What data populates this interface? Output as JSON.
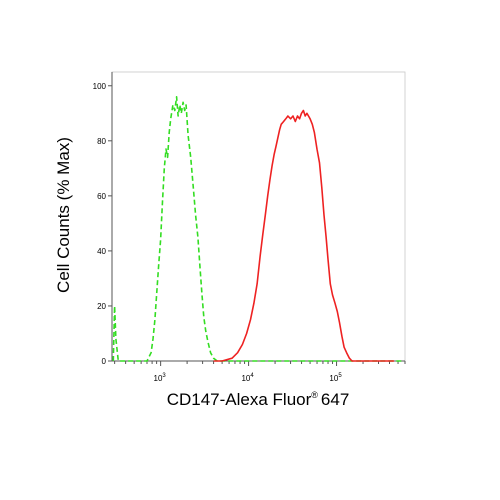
{
  "chart_data": {
    "type": "line",
    "xlabel": "CD147-Alexa Fluor",
    "xlabel_mark": "®",
    "xlabel_suffix": "647",
    "ylabel": "Cell Counts (% Max)",
    "x_scale": "log",
    "xlim": [
      280,
      600000
    ],
    "ylim": [
      0,
      105
    ],
    "x_ticks": [
      {
        "value": 1000,
        "base": "10",
        "exp": "3"
      },
      {
        "value": 10000,
        "base": "10",
        "exp": "4"
      },
      {
        "value": 100000,
        "base": "10",
        "exp": "5"
      }
    ],
    "y_ticks": [
      0,
      20,
      40,
      60,
      80,
      100
    ],
    "grid": false,
    "legend": "none",
    "series": [
      {
        "style": "dashed",
        "color": "#33dd22",
        "points": [
          [
            290,
            0
          ],
          [
            300,
            20
          ],
          [
            310,
            8
          ],
          [
            330,
            0
          ],
          [
            500,
            0
          ],
          [
            700,
            0
          ],
          [
            780,
            3
          ],
          [
            820,
            8
          ],
          [
            860,
            15
          ],
          [
            900,
            24
          ],
          [
            950,
            35
          ],
          [
            1000,
            44
          ],
          [
            1050,
            58
          ],
          [
            1100,
            70
          ],
          [
            1150,
            77
          ],
          [
            1200,
            74
          ],
          [
            1250,
            83
          ],
          [
            1300,
            88
          ],
          [
            1380,
            93
          ],
          [
            1450,
            91
          ],
          [
            1520,
            96
          ],
          [
            1580,
            89
          ],
          [
            1650,
            93
          ],
          [
            1720,
            90
          ],
          [
            1800,
            94
          ],
          [
            1880,
            91
          ],
          [
            1950,
            93
          ],
          [
            2050,
            82
          ],
          [
            2200,
            74
          ],
          [
            2350,
            63
          ],
          [
            2500,
            53
          ],
          [
            2650,
            45
          ],
          [
            2800,
            34
          ],
          [
            2950,
            24
          ],
          [
            3100,
            16
          ],
          [
            3250,
            11
          ],
          [
            3450,
            7
          ],
          [
            3700,
            3
          ],
          [
            4000,
            1
          ],
          [
            4400,
            0
          ],
          [
            8000,
            0
          ],
          [
            30000,
            0
          ],
          [
            100000,
            0
          ],
          [
            300000,
            0
          ],
          [
            580000,
            0
          ]
        ]
      },
      {
        "style": "solid",
        "color": "#ee2222",
        "points": [
          [
            4000,
            0
          ],
          [
            5000,
            0
          ],
          [
            6500,
            1
          ],
          [
            7500,
            3
          ],
          [
            8500,
            6
          ],
          [
            9500,
            10
          ],
          [
            10500,
            15
          ],
          [
            11500,
            21
          ],
          [
            12500,
            28
          ],
          [
            13500,
            38
          ],
          [
            14500,
            46
          ],
          [
            15500,
            53
          ],
          [
            16500,
            60
          ],
          [
            17500,
            66
          ],
          [
            18500,
            71
          ],
          [
            19500,
            75
          ],
          [
            20500,
            78
          ],
          [
            21500,
            81
          ],
          [
            22500,
            84
          ],
          [
            23500,
            86
          ],
          [
            25000,
            87
          ],
          [
            26500,
            88
          ],
          [
            28000,
            89
          ],
          [
            30000,
            88
          ],
          [
            32000,
            89
          ],
          [
            34000,
            87
          ],
          [
            36000,
            89
          ],
          [
            38000,
            88
          ],
          [
            40000,
            90
          ],
          [
            42000,
            91
          ],
          [
            44000,
            89
          ],
          [
            46000,
            90
          ],
          [
            48000,
            89
          ],
          [
            50000,
            88
          ],
          [
            53000,
            86
          ],
          [
            56000,
            83
          ],
          [
            60000,
            77
          ],
          [
            64000,
            72
          ],
          [
            68000,
            63
          ],
          [
            72000,
            53
          ],
          [
            76000,
            45
          ],
          [
            80000,
            37
          ],
          [
            85000,
            28
          ],
          [
            90000,
            24
          ],
          [
            96000,
            21
          ],
          [
            102000,
            18
          ],
          [
            108000,
            14
          ],
          [
            115000,
            9
          ],
          [
            122000,
            5
          ],
          [
            130000,
            3
          ],
          [
            140000,
            1
          ],
          [
            150000,
            0
          ],
          [
            200000,
            0
          ],
          [
            300000,
            0
          ],
          [
            450000,
            0
          ]
        ]
      }
    ]
  }
}
